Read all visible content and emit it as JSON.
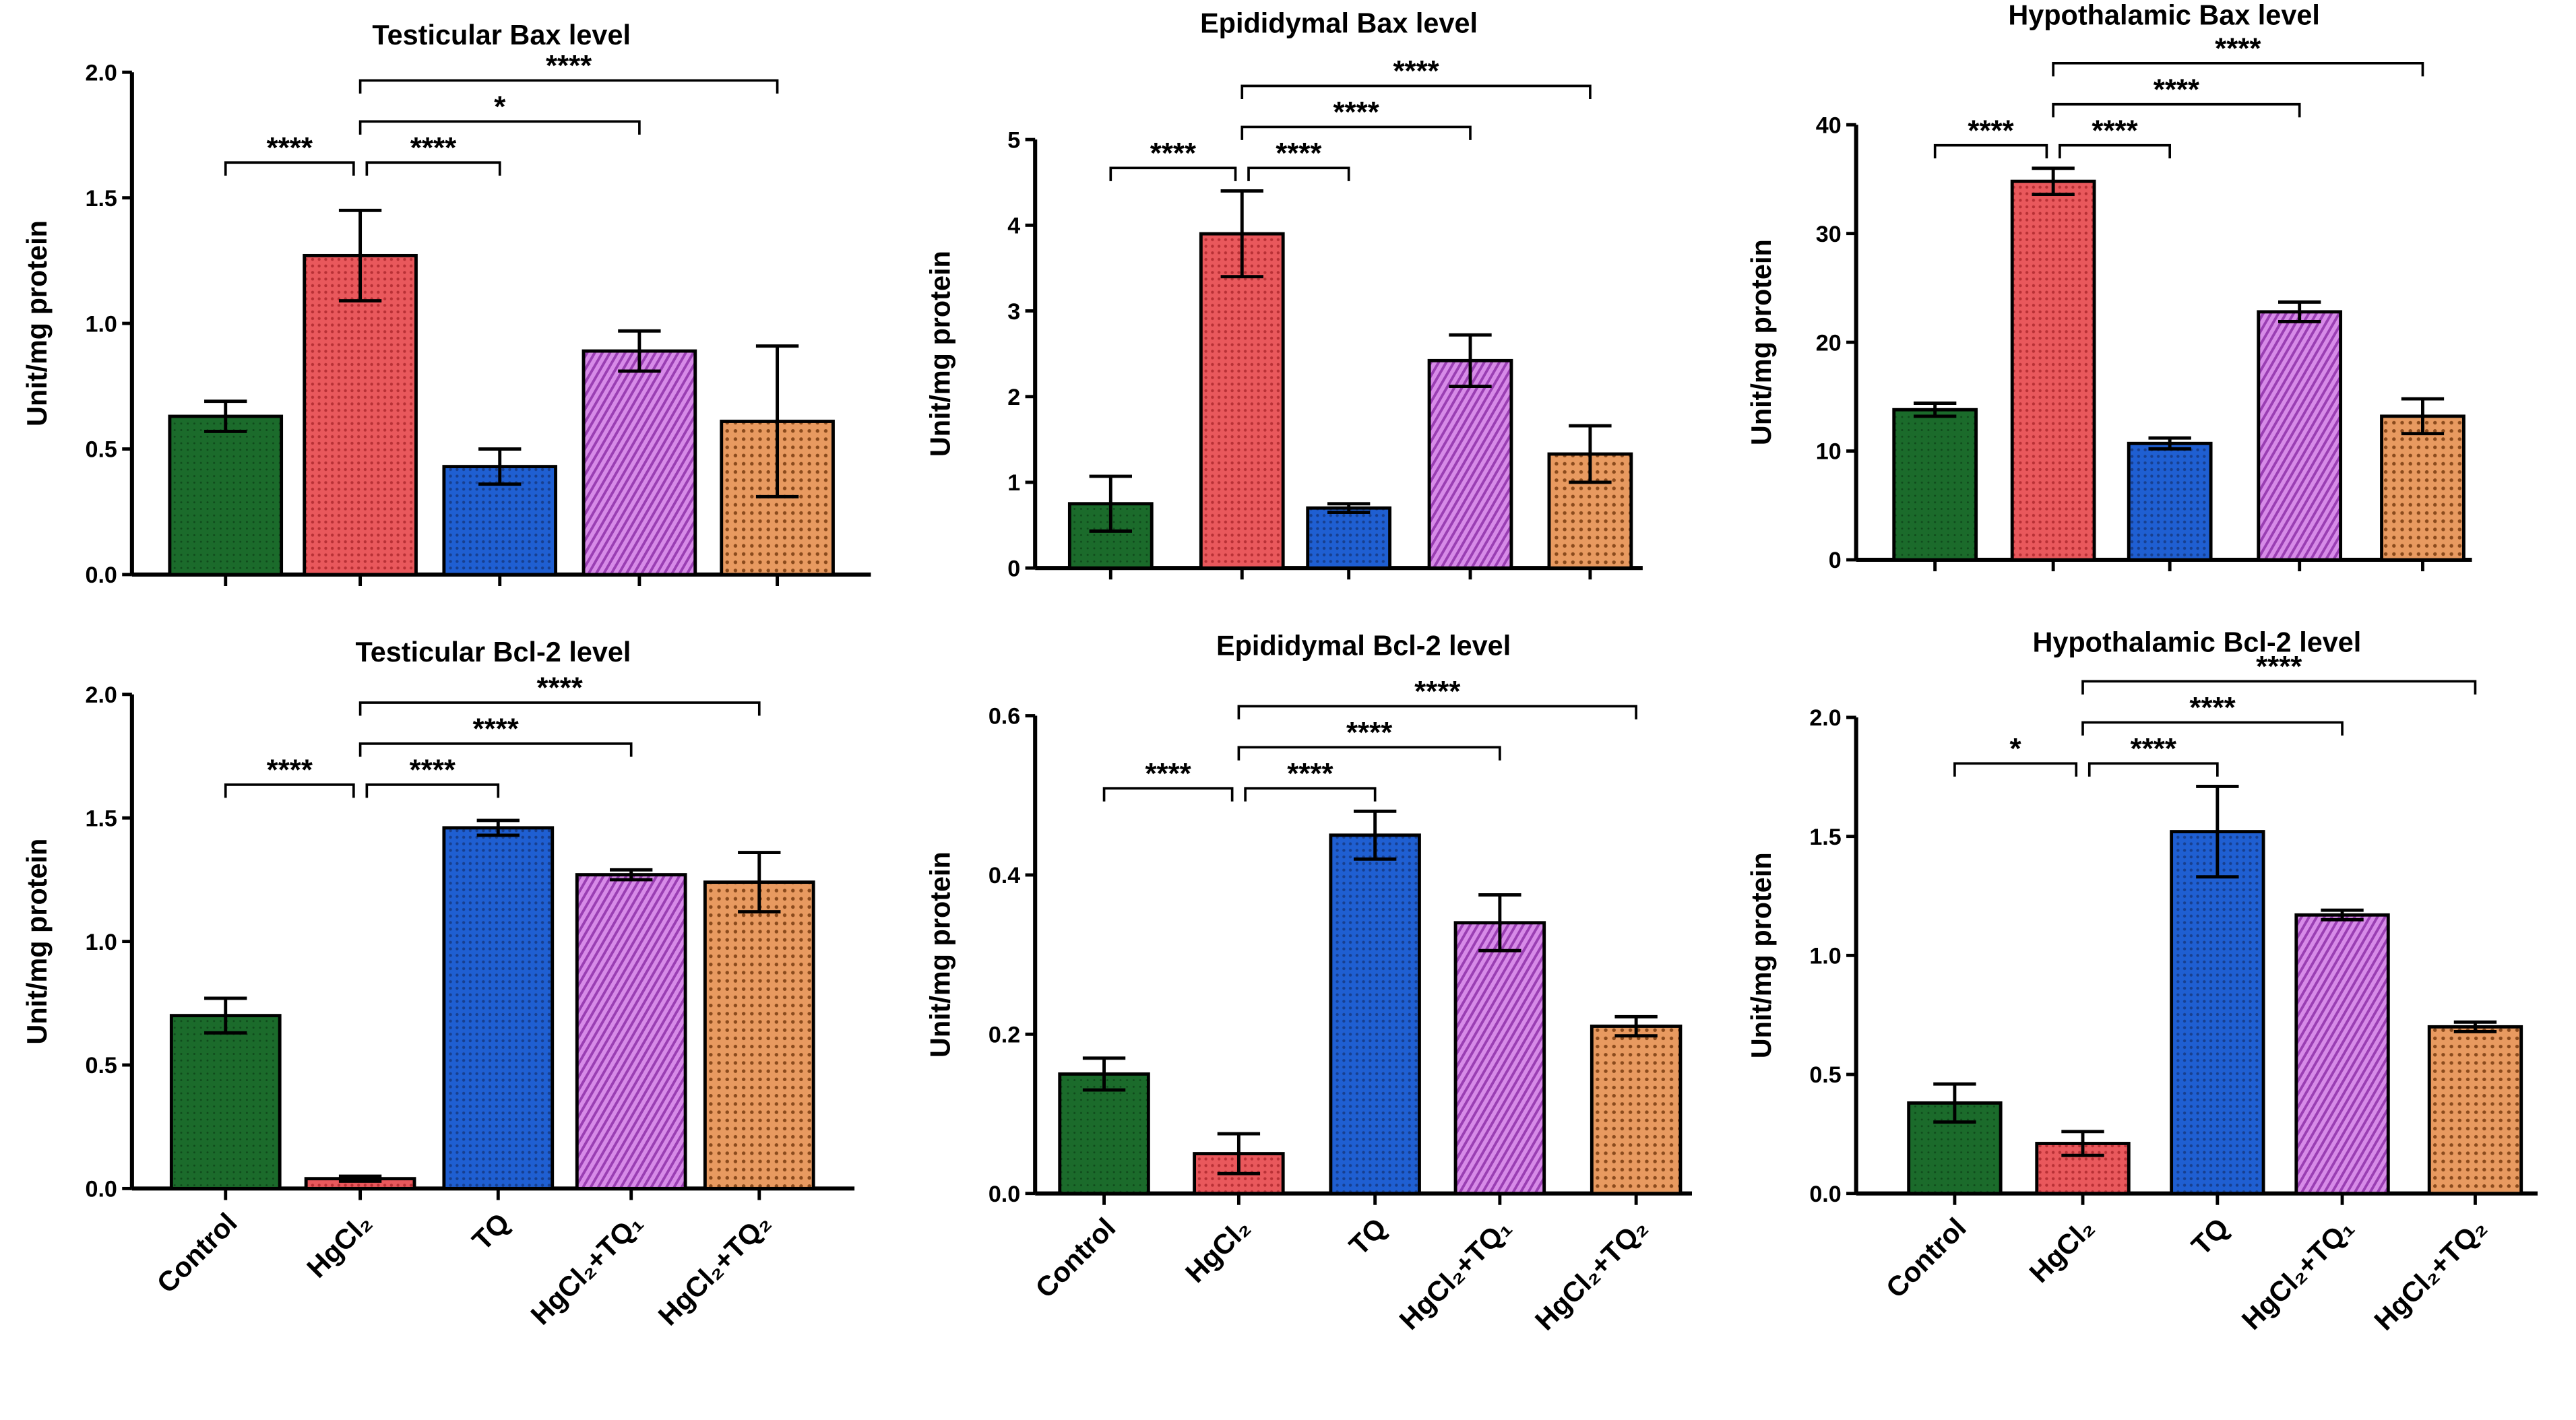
{
  "chart_data": [
    {
      "type": "bar",
      "title": "Testicular Bax level",
      "ylabel": "Unit/mg protein",
      "ylim": [
        0,
        2.0
      ],
      "yticks": [
        "0.0",
        "0.5",
        "1.0",
        "1.5",
        "2.0"
      ],
      "ytick_values": [
        0,
        0.5,
        1,
        1.5,
        2
      ],
      "categories": [
        "Control",
        "HgCl₂",
        "TQ",
        "HgCl₂+TQ₁",
        "HgCl₂+TQ₂"
      ],
      "values": [
        0.63,
        1.27,
        0.43,
        0.89,
        0.61
      ],
      "errors": [
        0.06,
        0.18,
        0.07,
        0.08,
        0.3
      ],
      "significance": [
        {
          "from": 0,
          "to": 1,
          "label": "****",
          "level": 0
        },
        {
          "from": 1,
          "to": 2,
          "label": "****",
          "level": 0
        },
        {
          "from": 1,
          "to": 3,
          "label": "*",
          "level": 1
        },
        {
          "from": 1,
          "to": 4,
          "label": "****",
          "level": 2
        }
      ]
    },
    {
      "type": "bar",
      "title": "Epididymal Bax level",
      "ylabel": "Unit/mg protein",
      "ylim": [
        0,
        5
      ],
      "yticks": [
        "0",
        "1",
        "2",
        "3",
        "4",
        "5"
      ],
      "ytick_values": [
        0,
        1,
        2,
        3,
        4,
        5
      ],
      "categories": [
        "Control",
        "HgCl₂",
        "TQ",
        "HgCl₂+TQ₁",
        "HgCl₂+TQ₂"
      ],
      "values": [
        0.75,
        3.9,
        0.7,
        2.42,
        1.33
      ],
      "errors": [
        0.32,
        0.5,
        0.05,
        0.3,
        0.33
      ],
      "significance": [
        {
          "from": 0,
          "to": 1,
          "label": "****",
          "level": 0
        },
        {
          "from": 1,
          "to": 2,
          "label": "****",
          "level": 0
        },
        {
          "from": 1,
          "to": 3,
          "label": "****",
          "level": 1
        },
        {
          "from": 1,
          "to": 4,
          "label": "****",
          "level": 2
        }
      ]
    },
    {
      "type": "bar",
      "title": "Hypothalamic Bax level",
      "ylabel": "Unit/mg protein",
      "ylim": [
        0,
        40
      ],
      "yticks": [
        "0",
        "10",
        "20",
        "30",
        "40"
      ],
      "ytick_values": [
        0,
        10,
        20,
        30,
        40
      ],
      "categories": [
        "Control",
        "HgCl₂",
        "TQ",
        "HgCl₂+TQ₁",
        "HgCl₂+TQ₂"
      ],
      "values": [
        13.8,
        34.8,
        10.7,
        22.8,
        13.2
      ],
      "errors": [
        0.6,
        1.2,
        0.5,
        0.9,
        1.6
      ],
      "significance": [
        {
          "from": 0,
          "to": 1,
          "label": "****",
          "level": 0
        },
        {
          "from": 1,
          "to": 2,
          "label": "****",
          "level": 0
        },
        {
          "from": 1,
          "to": 3,
          "label": "****",
          "level": 1
        },
        {
          "from": 1,
          "to": 4,
          "label": "****",
          "level": 2
        }
      ]
    },
    {
      "type": "bar",
      "title": "Testicular Bcl-2 level",
      "ylabel": "Unit/mg protein",
      "ylim": [
        0,
        2.0
      ],
      "yticks": [
        "0.0",
        "0.5",
        "1.0",
        "1.5",
        "2.0"
      ],
      "ytick_values": [
        0,
        0.5,
        1,
        1.5,
        2
      ],
      "categories": [
        "Control",
        "HgCl₂",
        "TQ",
        "HgCl₂+TQ₁",
        "HgCl₂+TQ₂"
      ],
      "values": [
        0.7,
        0.04,
        1.46,
        1.27,
        1.24
      ],
      "errors": [
        0.07,
        0.01,
        0.03,
        0.02,
        0.12
      ],
      "significance": [
        {
          "from": 0,
          "to": 1,
          "label": "****",
          "level": 0
        },
        {
          "from": 1,
          "to": 2,
          "label": "****",
          "level": 0
        },
        {
          "from": 1,
          "to": 3,
          "label": "****",
          "level": 1
        },
        {
          "from": 1,
          "to": 4,
          "label": "****",
          "level": 2
        }
      ]
    },
    {
      "type": "bar",
      "title": "Epididymal Bcl-2 level",
      "ylabel": "Unit/mg protein",
      "ylim": [
        0,
        0.6
      ],
      "yticks": [
        "0.0",
        "0.2",
        "0.4",
        "0.6"
      ],
      "ytick_values": [
        0,
        0.2,
        0.4,
        0.6
      ],
      "categories": [
        "Control",
        "HgCl₂",
        "TQ",
        "HgCl₂+TQ₁",
        "HgCl₂+TQ₂"
      ],
      "values": [
        0.15,
        0.05,
        0.45,
        0.34,
        0.21
      ],
      "errors": [
        0.02,
        0.025,
        0.03,
        0.035,
        0.012
      ],
      "significance": [
        {
          "from": 0,
          "to": 1,
          "label": "****",
          "level": 0
        },
        {
          "from": 1,
          "to": 2,
          "label": "****",
          "level": 0
        },
        {
          "from": 1,
          "to": 3,
          "label": "****",
          "level": 1
        },
        {
          "from": 1,
          "to": 4,
          "label": "****",
          "level": 2
        }
      ]
    },
    {
      "type": "bar",
      "title": "Hypothalamic Bcl-2 level",
      "ylabel": "Unit/mg protein",
      "ylim": [
        0,
        2.0
      ],
      "yticks": [
        "0.0",
        "0.5",
        "1.0",
        "1.5",
        "2.0"
      ],
      "ytick_values": [
        0,
        0.5,
        1,
        1.5,
        2
      ],
      "categories": [
        "Control",
        "HgCl₂",
        "TQ",
        "HgCl₂+TQ₁",
        "HgCl₂+TQ₂"
      ],
      "values": [
        0.38,
        0.21,
        1.52,
        1.17,
        0.7
      ],
      "errors": [
        0.08,
        0.05,
        0.19,
        0.02,
        0.02
      ],
      "significance": [
        {
          "from": 0,
          "to": 1,
          "label": "*",
          "level": 0
        },
        {
          "from": 1,
          "to": 2,
          "label": "****",
          "level": 0
        },
        {
          "from": 1,
          "to": 3,
          "label": "****",
          "level": 1
        },
        {
          "from": 1,
          "to": 4,
          "label": "****",
          "level": 2
        }
      ]
    }
  ],
  "colors": [
    "#1b6b2b",
    "#e9585c",
    "#1f5fd2",
    "#c467dc",
    "#d98448"
  ]
}
